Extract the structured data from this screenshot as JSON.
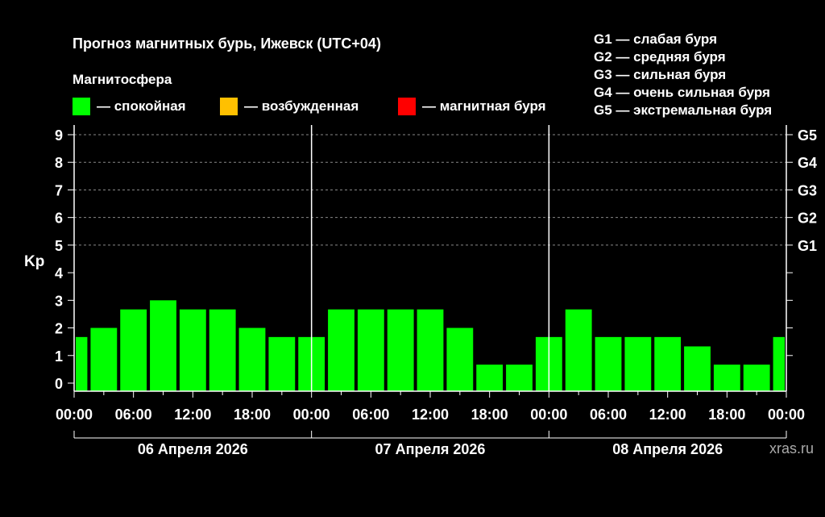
{
  "title": "Прогноз магнитных бурь, Ижевск (UTC+04)",
  "subtitle": "Магнитосфера",
  "legend": [
    {
      "label": "— спокойная",
      "color": "#00ff00"
    },
    {
      "label": "— возбужденная",
      "color": "#ffc000"
    },
    {
      "label": "— магнитная буря",
      "color": "#ff0000"
    }
  ],
  "storm_scale": [
    "G1 — слабая буря",
    "G2 — средняя буря",
    "G3 — сильная буря",
    "G4 — очень сильная буря",
    "G5 — экстремальная буря"
  ],
  "site": "xras.ru",
  "chart_data": {
    "type": "bar",
    "ylabel": "Kp",
    "ylim": [
      0,
      9
    ],
    "y_ticks": [
      "0",
      "1",
      "2",
      "3",
      "4",
      "5",
      "6",
      "7",
      "8",
      "9"
    ],
    "right_ticks": [
      {
        "label": "G1",
        "kp": 5
      },
      {
        "label": "G2",
        "kp": 6
      },
      {
        "label": "G3",
        "kp": 7
      },
      {
        "label": "G4",
        "kp": 8
      },
      {
        "label": "G5",
        "kp": 9
      }
    ],
    "x_tick_labels": [
      "00:00",
      "06:00",
      "12:00",
      "18:00",
      "00:00",
      "06:00",
      "12:00",
      "18:00",
      "00:00",
      "06:00",
      "12:00",
      "18:00",
      "00:00"
    ],
    "days": [
      "06 Апреля 2026",
      "07 Апреля 2026",
      "08 Апреля 2026"
    ],
    "interval_hours": 3,
    "start_offset_hours": -1.5,
    "values": [
      1.67,
      2.0,
      2.67,
      3.0,
      2.67,
      2.67,
      2.0,
      1.67,
      1.67,
      2.67,
      2.67,
      2.67,
      2.67,
      2.0,
      0.67,
      0.67,
      1.67,
      2.67,
      1.67,
      1.67,
      1.67,
      1.33,
      0.67,
      0.67,
      1.67
    ],
    "bar_color": "#00ff00",
    "grid": "dashed at each Kp level from 4 to 9"
  }
}
